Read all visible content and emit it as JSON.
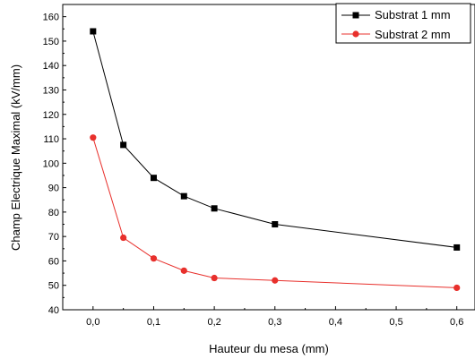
{
  "chart_data": {
    "type": "line",
    "title": "",
    "xlabel": "Hauteur du mesa (mm)",
    "ylabel": "Champ Electrique Maximal (kV/mm)",
    "xlim": [
      -0.05,
      0.63
    ],
    "ylim": [
      40,
      165
    ],
    "x_ticks": [
      0.0,
      0.1,
      0.2,
      0.3,
      0.4,
      0.5,
      0.6
    ],
    "x_tick_labels": [
      "0,0",
      "0,1",
      "0,2",
      "0,3",
      "0,4",
      "0,5",
      "0,6"
    ],
    "y_ticks": [
      40,
      50,
      60,
      70,
      80,
      90,
      100,
      110,
      120,
      130,
      140,
      150,
      160
    ],
    "y_tick_labels": [
      "40",
      "50",
      "60",
      "70",
      "80",
      "90",
      "100",
      "110",
      "120",
      "130",
      "140",
      "150",
      "160"
    ],
    "grid": false,
    "legend_position": "top-right",
    "x": [
      0.0,
      0.05,
      0.1,
      0.15,
      0.2,
      0.3,
      0.6
    ],
    "series": [
      {
        "name": "Substrat 1 mm",
        "color": "#000000",
        "marker": "square",
        "values": [
          154,
          107.5,
          94,
          86.5,
          81.5,
          75,
          65.5
        ]
      },
      {
        "name": "Substrat 2 mm",
        "color": "#e8302c",
        "marker": "circle",
        "values": [
          110.5,
          69.5,
          61,
          56,
          53,
          52,
          49
        ]
      }
    ]
  }
}
